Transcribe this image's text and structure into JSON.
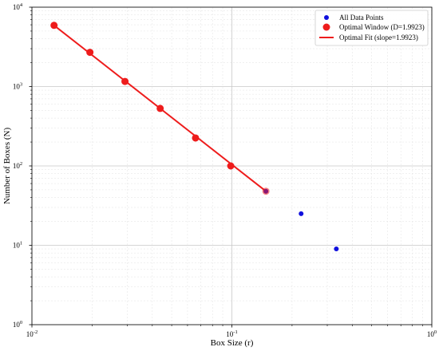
{
  "chart_data": {
    "type": "scatter",
    "xlabel": "Box Size (r)",
    "ylabel": "Number of Boxes (N)",
    "x_scale": "log",
    "y_scale": "log",
    "xlim": [
      0.01,
      1
    ],
    "ylim": [
      1,
      10000
    ],
    "grid": true,
    "legend_position": "top-right",
    "x_ticks": [
      {
        "value": 0.01,
        "base": "10",
        "exp": "-2"
      },
      {
        "value": 0.1,
        "base": "10",
        "exp": "-1"
      },
      {
        "value": 1,
        "base": "10",
        "exp": "0"
      }
    ],
    "y_ticks": [
      {
        "value": 1,
        "base": "10",
        "exp": "0"
      },
      {
        "value": 10,
        "base": "10",
        "exp": "1"
      },
      {
        "value": 100,
        "base": "10",
        "exp": "2"
      },
      {
        "value": 1000,
        "base": "10",
        "exp": "3"
      },
      {
        "value": 10000,
        "base": "10",
        "exp": "4"
      }
    ],
    "series": [
      {
        "name": "All Data Points",
        "kind": "scatter",
        "color": "#1010dd",
        "x": [
          0.0129,
          0.0195,
          0.0292,
          0.0438,
          0.0658,
          0.0987,
          0.148,
          0.222,
          0.333
        ],
        "y": [
          5900,
          2700,
          1160,
          530,
          225,
          100,
          48,
          25,
          9
        ]
      },
      {
        "name": "Optimal Window (D=1.9923)",
        "kind": "scatter",
        "color": "#ee1c1c",
        "x": [
          0.0129,
          0.0195,
          0.0292,
          0.0438,
          0.0658,
          0.0987,
          0.148
        ],
        "y": [
          5900,
          2700,
          1160,
          530,
          225,
          100,
          48
        ]
      },
      {
        "name": "Optimal Fit (slope=1.9923)",
        "kind": "line",
        "color": "#ee1c1c",
        "x": [
          0.0129,
          0.148
        ],
        "y": [
          5900,
          48
        ]
      }
    ]
  }
}
